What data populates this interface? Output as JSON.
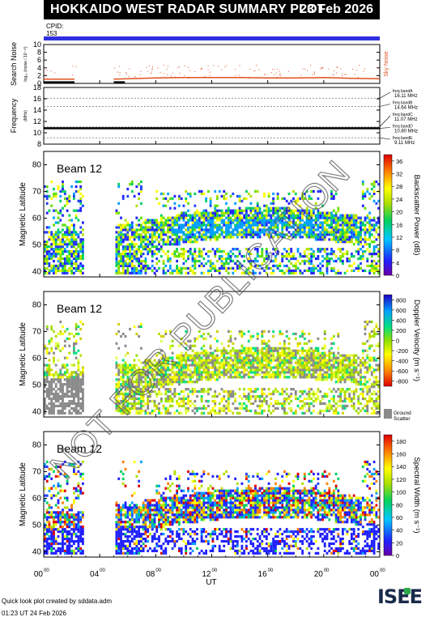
{
  "header": {
    "title": "HOKKAIDO WEST RADAR SUMMARY PLOT",
    "date": "23 Feb 2026",
    "cpid_label": "CPID:",
    "cpid_value": "153"
  },
  "colors": {
    "title_bg": "#000000",
    "cpid_bar": "#3030e0",
    "noise_search": "#000000",
    "noise_sky": "#e05020",
    "ground_scatter": "#8a8a8a"
  },
  "watermark": "NOT FOR PUBLICATION",
  "footer": {
    "credit": "Quick look plot created by sddata.adm",
    "timestamp": "01:23 UT 24 Feb 2026",
    "logo_text": "ISEE"
  },
  "chart_data": [
    {
      "type": "line",
      "name": "noise",
      "ylabel": "Search Noise",
      "ylabel_units": "log₁₀ (noise / 10⁻¹⁰)",
      "right_label": "Sky Noise",
      "ylim": [
        0,
        10
      ],
      "yticks": [
        "0",
        "2",
        "4",
        "6",
        "8",
        "10"
      ],
      "xlim_hours": [
        0,
        24
      ],
      "series": [
        {
          "name": "Sky Noise",
          "x": [
            0,
            2.2,
            2.6,
            5.0,
            6,
            8,
            10,
            12,
            14,
            16,
            18,
            20,
            22,
            24
          ],
          "y": [
            1.1,
            1.1,
            null,
            1.1,
            1.2,
            1.4,
            1.5,
            1.5,
            1.5,
            1.4,
            1.4,
            1.5,
            1.3,
            1.2
          ]
        },
        {
          "name": "Search Noise",
          "x": [
            0,
            2.2,
            2.6,
            5.0,
            5.8
          ],
          "y": [
            0.3,
            0.3,
            null,
            0.3,
            0.3
          ]
        }
      ]
    },
    {
      "type": "line",
      "name": "frequency",
      "ylabel": "Frequency",
      "ylabel_units": "(MHz)",
      "ylim": [
        8,
        18
      ],
      "yticks": [
        "8",
        "10",
        "12",
        "14",
        "16",
        "18"
      ],
      "reference_lines": [
        {
          "label": "freq bandA",
          "value_text": "16.11 MHz",
          "value": 16.11
        },
        {
          "label": "freq bandB",
          "value_text": "14.64 MHz",
          "value": 14.64
        },
        {
          "label": "freq bandC",
          "value_text": "11.07 MHz",
          "value": 11.07
        },
        {
          "label": "freq bandD",
          "value_text": "10.80 MHz",
          "value": 10.8
        },
        {
          "label": "freq bandE",
          "value_text": "9.11 MHz",
          "value": 9.11
        }
      ],
      "series": [
        {
          "name": "Operating frequency",
          "x": [
            0,
            24
          ],
          "y": [
            10.8,
            10.8
          ]
        }
      ]
    },
    {
      "type": "heatmap",
      "name": "power",
      "panel_label": "Beam 12",
      "ylabel": "Magnetic Latitude",
      "colorbar_label": "Backscatter Power (dB)",
      "ylim": [
        38,
        85
      ],
      "yticks": [
        "40",
        "50",
        "60",
        "70",
        "80"
      ],
      "colorbar_ticks": [
        "0",
        "4",
        "8",
        "12",
        "16",
        "20",
        "24",
        "28",
        "32",
        "36"
      ],
      "colorbar_range": [
        0,
        38
      ],
      "gaps_hours": [
        [
          2.8,
          5.1
        ]
      ]
    },
    {
      "type": "heatmap",
      "name": "velocity",
      "panel_label": "Beam 12",
      "ylabel": "Magnetic Latitude",
      "colorbar_label": "Doppler Velocity (m s⁻¹)",
      "ylim": [
        38,
        85
      ],
      "yticks": [
        "40",
        "50",
        "60",
        "70",
        "80"
      ],
      "colorbar_ticks": [
        "800",
        "600",
        "400",
        "200",
        "0",
        "-200",
        "-400",
        "-600",
        "-800"
      ],
      "colorbar_range": [
        -800,
        800
      ],
      "ground_scatter_label": [
        "Ground",
        "Scatter"
      ],
      "gaps_hours": [
        [
          2.8,
          5.1
        ]
      ]
    },
    {
      "type": "heatmap",
      "name": "width",
      "panel_label": "Beam 12",
      "ylabel": "Magnetic Latitude",
      "colorbar_label": "Spectral Width (m s⁻¹)",
      "ylim": [
        38,
        85
      ],
      "yticks": [
        "40",
        "50",
        "60",
        "70",
        "80"
      ],
      "colorbar_ticks": [
        "0",
        "20",
        "40",
        "60",
        "80",
        "100",
        "120",
        "140",
        "160",
        "180"
      ],
      "colorbar_range": [
        0,
        190
      ],
      "gaps_hours": [
        [
          2.8,
          5.1
        ]
      ]
    }
  ],
  "x_axis": {
    "label": "UT",
    "ticks": [
      {
        "hh": "00",
        "mm": "00"
      },
      {
        "hh": "04",
        "mm": "00"
      },
      {
        "hh": "08",
        "mm": "00"
      },
      {
        "hh": "12",
        "mm": "00"
      },
      {
        "hh": "16",
        "mm": "00"
      },
      {
        "hh": "20",
        "mm": "00"
      },
      {
        "hh": "00",
        "mm": "00"
      }
    ]
  }
}
